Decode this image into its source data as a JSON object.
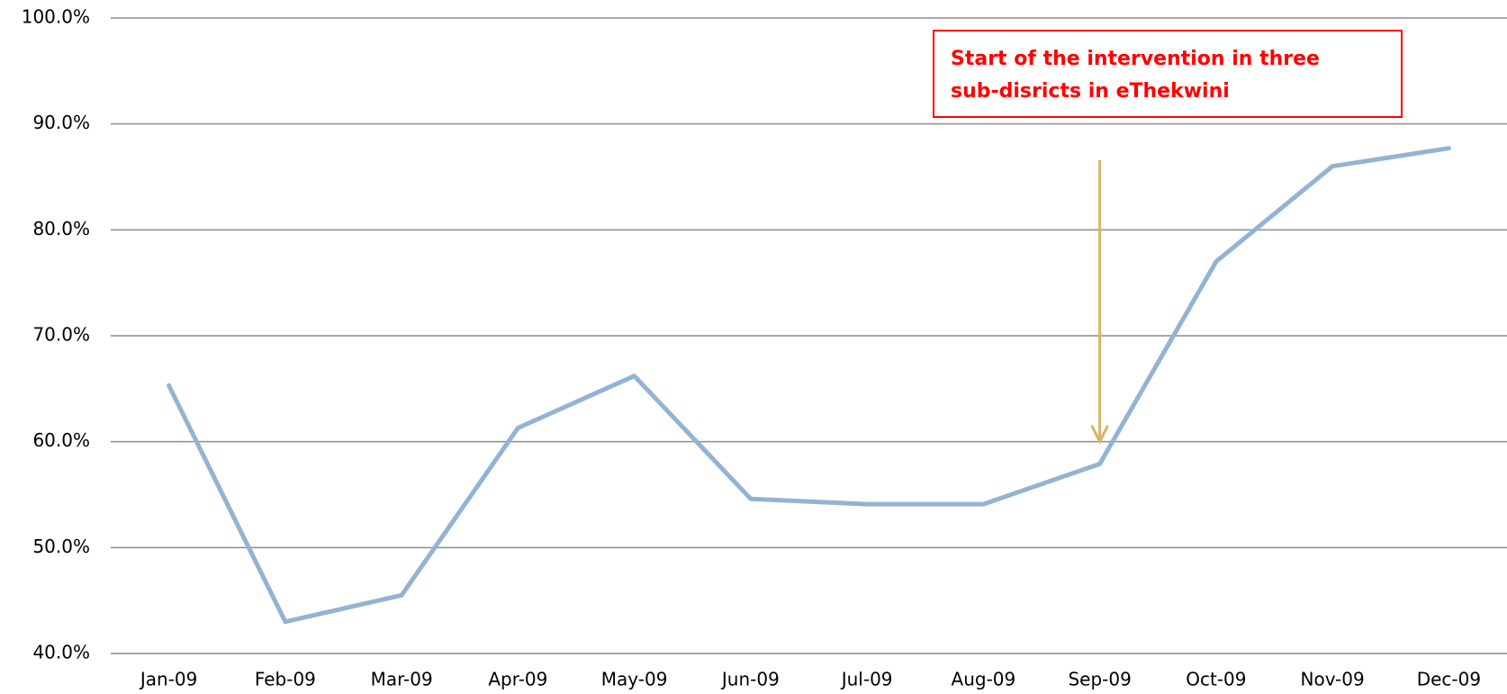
{
  "chart_data": {
    "type": "line",
    "categories": [
      "Jan-09",
      "Feb-09",
      "Mar-09",
      "Apr-09",
      "May-09",
      "Jun-09",
      "Jul-09",
      "Aug-09",
      "Sep-09",
      "Oct-09",
      "Nov-09",
      "Dec-09"
    ],
    "values": [
      65.3,
      43.0,
      45.5,
      61.3,
      66.2,
      54.6,
      54.1,
      54.1,
      57.9,
      77.0,
      86.0,
      87.7
    ],
    "color": "#93b3d3",
    "ylim": [
      40,
      100
    ],
    "yticks": [
      {
        "value": 40,
        "label": "40.0%"
      },
      {
        "value": 50,
        "label": "50.0%"
      },
      {
        "value": 60,
        "label": "60.0%"
      },
      {
        "value": 70,
        "label": "70.0%"
      },
      {
        "value": 80,
        "label": "80.0%"
      },
      {
        "value": 90,
        "label": "90.0%"
      },
      {
        "value": 100,
        "label": "100.0%"
      }
    ],
    "grid": true,
    "annotation": [
      "Start of the intervention in three",
      "sub-disricts in eThekwini"
    ]
  }
}
